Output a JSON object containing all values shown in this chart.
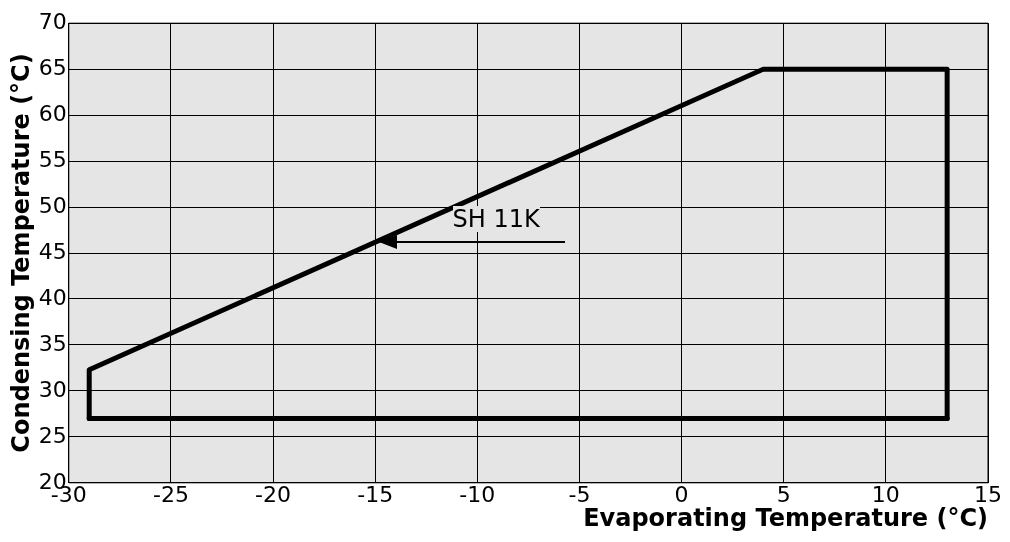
{
  "chart_data": {
    "type": "line",
    "xlabel": "Evaporating Temperature (°C)",
    "ylabel": "Condensing Temperature (°C)",
    "series": [
      {
        "color": "#000000",
        "x": [
          -29,
          -29,
          4,
          13,
          13
        ],
        "values": [
          27,
          32.3,
          65,
          65,
          27
        ]
      },
      {
        "color": "#000000",
        "x": [
          -29,
          13
        ],
        "values": [
          27,
          27
        ]
      }
    ],
    "xlim": [
      -30,
      15
    ],
    "xticks": [
      -30,
      -25,
      -20,
      -15,
      -10,
      -5,
      0,
      5,
      10,
      15
    ],
    "ylim": [
      20,
      70
    ],
    "yticks": [
      20,
      25,
      30,
      35,
      40,
      45,
      50,
      55,
      60,
      65,
      70
    ],
    "grid": true,
    "legend": false,
    "marker": "none",
    "line_style": "solid",
    "annotations": [
      "SH 11K"
    ]
  }
}
